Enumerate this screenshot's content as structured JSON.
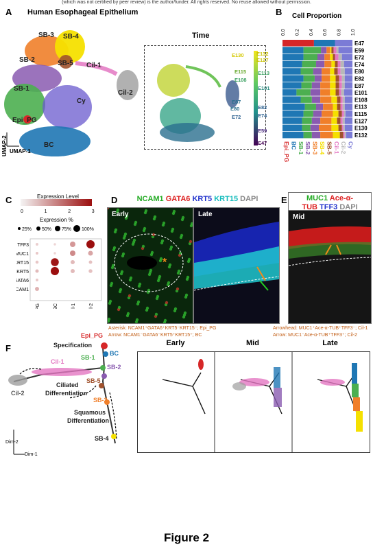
{
  "header": "(which was not certified by peer review) is the author/funder. All rights reserved. No reuse allowed without permission.",
  "panel_letters": {
    "a": "A",
    "b": "B",
    "c": "C",
    "d": "D",
    "e": "E",
    "f": "F"
  },
  "panelA": {
    "title": "Human Esophageal Epithelium",
    "time_title": "Time",
    "axis_y": "UMAP-2",
    "axis_x": "UMAP-1",
    "clusters": [
      {
        "label": "SB-3",
        "color": "#f07f2a"
      },
      {
        "label": "SB-4",
        "color": "#f5e000"
      },
      {
        "label": "SB-2",
        "color": "#8a5bb0"
      },
      {
        "label": "SB-5",
        "color": "#a0522d"
      },
      {
        "label": "Cil-1",
        "color": "#e377c2"
      },
      {
        "label": "SB-1",
        "color": "#4caf50"
      },
      {
        "label": "Cil-2",
        "color": "#9e9e9e"
      },
      {
        "label": "Cy",
        "color": "#6a5acd"
      },
      {
        "label": "Epi_PG",
        "color": "#d62728"
      },
      {
        "label": "BC",
        "color": "#1f77b4"
      }
    ],
    "time_labels": [
      "E130",
      "E132",
      "E127",
      "E115",
      "E113",
      "E108",
      "E101",
      "E87",
      "E80",
      "E82",
      "E74",
      "E72",
      "E59",
      "E47"
    ]
  },
  "chart_data": {
    "type": "bar",
    "orientation": "horizontal-stacked",
    "title": "Cell Proportion",
    "xlim": [
      0,
      1.0
    ],
    "xticks": [
      "0.0",
      "0.2",
      "0.4",
      "0.6",
      "0.8",
      "1.0"
    ],
    "categories": [
      "E47",
      "E59",
      "E72",
      "E74",
      "E80",
      "E82",
      "E87",
      "E101",
      "E108",
      "E113",
      "E115",
      "E127",
      "E130",
      "E132"
    ],
    "series": [
      {
        "name": "Epi_PG",
        "color": "#d62728",
        "values": [
          0.45,
          0.0,
          0.0,
          0.0,
          0.0,
          0.0,
          0.0,
          0.0,
          0.0,
          0.0,
          0.0,
          0.0,
          0.0,
          0.0
        ]
      },
      {
        "name": "BC",
        "color": "#1f77b4",
        "values": [
          0.3,
          0.3,
          0.3,
          0.28,
          0.26,
          0.3,
          0.27,
          0.2,
          0.26,
          0.32,
          0.3,
          0.28,
          0.28,
          0.3
        ]
      },
      {
        "name": "SB-1",
        "color": "#4caf50",
        "values": [
          0.0,
          0.25,
          0.2,
          0.2,
          0.18,
          0.16,
          0.15,
          0.2,
          0.16,
          0.16,
          0.14,
          0.14,
          0.12,
          0.12
        ]
      },
      {
        "name": "SB-2",
        "color": "#8a5bb0",
        "values": [
          0.0,
          0.08,
          0.1,
          0.12,
          0.12,
          0.1,
          0.12,
          0.14,
          0.12,
          0.1,
          0.12,
          0.12,
          0.12,
          0.12
        ]
      },
      {
        "name": "SB-3",
        "color": "#f07f2a",
        "values": [
          0.0,
          0.05,
          0.08,
          0.1,
          0.12,
          0.12,
          0.14,
          0.14,
          0.16,
          0.14,
          0.16,
          0.16,
          0.18,
          0.18
        ]
      },
      {
        "name": "SB-4",
        "color": "#f5e000",
        "values": [
          0.0,
          0.02,
          0.04,
          0.05,
          0.06,
          0.08,
          0.08,
          0.08,
          0.08,
          0.06,
          0.08,
          0.08,
          0.1,
          0.1
        ]
      },
      {
        "name": "SB-5",
        "color": "#a0522d",
        "values": [
          0.0,
          0.03,
          0.03,
          0.04,
          0.05,
          0.05,
          0.05,
          0.05,
          0.05,
          0.05,
          0.05,
          0.05,
          0.05,
          0.05
        ]
      },
      {
        "name": "Cil-1",
        "color": "#e377c2",
        "values": [
          0.0,
          0.04,
          0.05,
          0.04,
          0.04,
          0.04,
          0.04,
          0.03,
          0.03,
          0.03,
          0.03,
          0.03,
          0.02,
          0.02
        ]
      },
      {
        "name": "Cil-2",
        "color": "#b8b8b8",
        "values": [
          0.0,
          0.03,
          0.05,
          0.05,
          0.06,
          0.04,
          0.04,
          0.04,
          0.03,
          0.03,
          0.02,
          0.03,
          0.02,
          0.02
        ]
      },
      {
        "name": "Cy",
        "color": "#7b7bd6",
        "values": [
          0.25,
          0.2,
          0.15,
          0.12,
          0.11,
          0.11,
          0.11,
          0.12,
          0.11,
          0.11,
          0.1,
          0.11,
          0.11,
          0.09
        ]
      }
    ]
  },
  "panelC": {
    "legend_title": "Expression Level",
    "scale_ticks": [
      "0",
      "1",
      "2",
      "3"
    ],
    "pct_title": "Expression %",
    "pct_labels": [
      "25%",
      "50%",
      "75%",
      "100%"
    ],
    "genes": [
      "TFF3",
      "MUC1",
      "KRT15",
      "KRT5",
      "GATA6",
      "NCAM1"
    ],
    "groups": [
      "Epi_PG",
      "BC",
      "Cil-1",
      "Cil-2"
    ]
  },
  "panelD": {
    "markers": [
      {
        "text": "NCAM1",
        "color": "#22aa22"
      },
      {
        "text": "GATA6",
        "color": "#dd2222"
      },
      {
        "text": "KRT5",
        "color": "#2233cc"
      },
      {
        "text": "KRT15",
        "color": "#11bbbb"
      },
      {
        "text": "DAPI",
        "color": "#888888"
      }
    ],
    "early_label": "Early",
    "late_label": "Late",
    "note1": "Asterisk: NCAM1⁺GATA6⁺KRT5⁻KRT15⁻; Epi_PG",
    "note2": "Arrow: NCAM1⁻GATA6⁻KRT5⁺KRT15⁺; BC"
  },
  "panelE": {
    "line1_a": "MUC1",
    "line1_b": "Ace-α-",
    "line2_a": "TUB",
    "line2_b": "TFF3",
    "line2_c": "DAPI",
    "mid_label": "Mid",
    "note1": "Arrowhead: MUC1⁺Ace-α-TUB⁺TFF3⁻; Cil-1",
    "note2": "Arrow: MUC1⁻Ace-α-TUB⁺TFF3⁺; Cil-2"
  },
  "panelF": {
    "labels": {
      "epi_pg": "Epi_PG",
      "bc": "BC",
      "specification": "Specification",
      "cil1": "Cil-1",
      "sb1": "SB-1",
      "sb2": "SB-2",
      "ciliated": "Ciliated",
      "differentiation": "Differentiation",
      "sb5": "SB-5",
      "cil2": "Cil-2",
      "sb3": "SB-3",
      "squamous": "Squamous",
      "diff2": "Differentiation",
      "sb4": "SB-4",
      "dim2": "Dim-2",
      "dim1": "Dim-1"
    },
    "stages": [
      "Early",
      "Mid",
      "Late"
    ]
  },
  "caption": "Figure 2"
}
